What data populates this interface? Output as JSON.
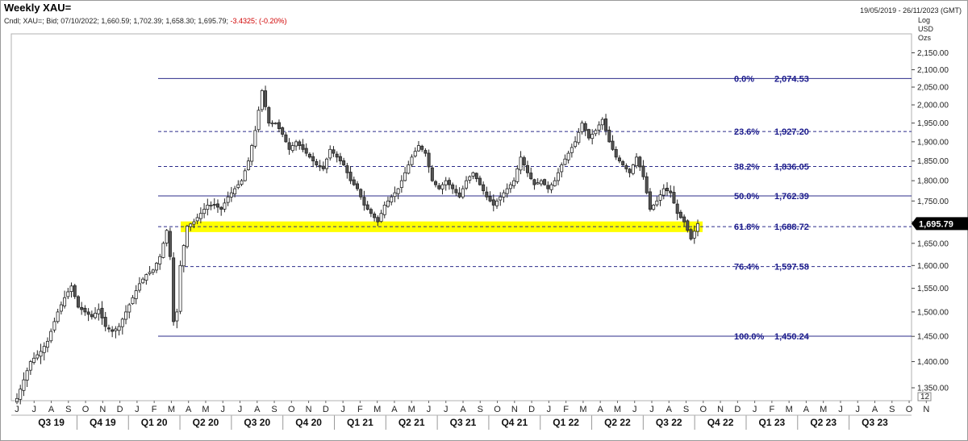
{
  "header": {
    "title": "Weekly XAU=",
    "date_range": "19/05/2019 - 26/11/2023 (GMT)",
    "legend_main": "Cndl; XAU=; Bid; 07/10/2022; 1,660.59; 1,702.39; 1,658.30; 1,695.79;",
    "legend_change": "-3.4325; (-0.20%)",
    "units": [
      "Log",
      "USD",
      "Ozs"
    ]
  },
  "colors": {
    "fib_line": "#2b2b8a",
    "fib_text": "#1a1a8c",
    "highlight": "#ffff00",
    "last_price_bg": "#000000",
    "candle_up": "#ffffff",
    "candle_down": "#555555"
  },
  "chart_data": {
    "type": "candlestick",
    "y_scale": "log",
    "ylim": [
      1305,
      2200
    ],
    "y_ticks": [
      "1,350.00",
      "1,400.00",
      "1,450.00",
      "1,500.00",
      "1,550.00",
      "1,600.00",
      "1,650.00",
      "1,700.00",
      "1,750.00",
      "1,800.00",
      "1,850.00",
      "1,900.00",
      "1,950.00",
      "2,000.00",
      "2,050.00",
      "2,100.00",
      "2,150.00"
    ],
    "y_tick_values": [
      1350,
      1400,
      1450,
      1500,
      1550,
      1600,
      1650,
      1700,
      1750,
      1800,
      1850,
      1900,
      1950,
      2000,
      2050,
      2100,
      2150
    ],
    "month_labels": [
      "J",
      "J",
      "A",
      "S",
      "O",
      "N",
      "D",
      "J",
      "F",
      "M",
      "A",
      "M",
      "J",
      "J",
      "A",
      "S",
      "O",
      "N",
      "D",
      "J",
      "F",
      "M",
      "A",
      "M",
      "J",
      "J",
      "A",
      "S",
      "O",
      "N",
      "D",
      "J",
      "F",
      "M",
      "A",
      "M",
      "J",
      "J",
      "A",
      "S",
      "O",
      "N",
      "D",
      "J",
      "F",
      "M",
      "A",
      "M",
      "J",
      "J",
      "A",
      "S",
      "O",
      "N"
    ],
    "quarter_labels": [
      "Q3 19",
      "Q4 19",
      "Q1 20",
      "Q2 20",
      "Q3 20",
      "Q4 20",
      "Q1 21",
      "Q2 21",
      "Q3 21",
      "Q4 21",
      "Q1 22",
      "Q2 22",
      "Q3 22",
      "Q4 22",
      "Q1 23",
      "Q2 23",
      "Q3 23"
    ],
    "last_price": {
      "value": 1695.79,
      "label": "1,695.79"
    },
    "extra_axis_label": "12",
    "fib_levels": [
      {
        "pct": "0.0%",
        "label": "2,074.53",
        "value": 2074.53,
        "style": "solid"
      },
      {
        "pct": "23.6%",
        "label": "1,927.20",
        "value": 1927.2,
        "style": "dashed"
      },
      {
        "pct": "38.2%",
        "label": "1,836.05",
        "value": 1836.05,
        "style": "dashed"
      },
      {
        "pct": "50.0%",
        "label": "1,762.39",
        "value": 1762.39,
        "style": "solid"
      },
      {
        "pct": "61.8%",
        "label": "1,688.72",
        "value": 1688.72,
        "style": "dashed"
      },
      {
        "pct": "76.4%",
        "label": "1,597.58",
        "value": 1597.58,
        "style": "dashed"
      },
      {
        "pct": "100.0%",
        "label": "1,450.24",
        "value": 1450.24,
        "style": "solid"
      }
    ],
    "highlight_band": {
      "low": 1676,
      "high": 1701
    },
    "close_path": [
      [
        0,
        1330
      ],
      [
        4,
        1400
      ],
      [
        7,
        1420
      ],
      [
        9,
        1440
      ],
      [
        12,
        1500
      ],
      [
        14,
        1530
      ],
      [
        16,
        1555
      ],
      [
        18,
        1510
      ],
      [
        20,
        1500
      ],
      [
        22,
        1490
      ],
      [
        24,
        1505
      ],
      [
        26,
        1470
      ],
      [
        28,
        1460
      ],
      [
        30,
        1470
      ],
      [
        32,
        1500
      ],
      [
        34,
        1530
      ],
      [
        36,
        1560
      ],
      [
        38,
        1580
      ],
      [
        40,
        1590
      ],
      [
        42,
        1620
      ],
      [
        44,
        1680
      ],
      [
        45,
        1620
      ],
      [
        46,
        1480
      ],
      [
        47,
        1500
      ],
      [
        48,
        1600
      ],
      [
        50,
        1690
      ],
      [
        52,
        1700
      ],
      [
        54,
        1720
      ],
      [
        56,
        1740
      ],
      [
        58,
        1740
      ],
      [
        60,
        1730
      ],
      [
        62,
        1760
      ],
      [
        64,
        1780
      ],
      [
        66,
        1800
      ],
      [
        68,
        1850
      ],
      [
        70,
        1930
      ],
      [
        72,
        2040
      ],
      [
        74,
        1950
      ],
      [
        76,
        1950
      ],
      [
        78,
        1920
      ],
      [
        80,
        1880
      ],
      [
        82,
        1900
      ],
      [
        84,
        1880
      ],
      [
        86,
        1860
      ],
      [
        88,
        1840
      ],
      [
        90,
        1830
      ],
      [
        92,
        1880
      ],
      [
        94,
        1860
      ],
      [
        96,
        1840
      ],
      [
        98,
        1800
      ],
      [
        100,
        1780
      ],
      [
        102,
        1740
      ],
      [
        104,
        1720
      ],
      [
        106,
        1700
      ],
      [
        108,
        1740
      ],
      [
        110,
        1760
      ],
      [
        112,
        1780
      ],
      [
        114,
        1820
      ],
      [
        116,
        1860
      ],
      [
        118,
        1890
      ],
      [
        120,
        1870
      ],
      [
        122,
        1800
      ],
      [
        124,
        1780
      ],
      [
        126,
        1800
      ],
      [
        128,
        1780
      ],
      [
        130,
        1760
      ],
      [
        132,
        1800
      ],
      [
        134,
        1820
      ],
      [
        136,
        1790
      ],
      [
        138,
        1760
      ],
      [
        140,
        1740
      ],
      [
        142,
        1760
      ],
      [
        144,
        1780
      ],
      [
        146,
        1800
      ],
      [
        148,
        1860
      ],
      [
        150,
        1820
      ],
      [
        152,
        1790
      ],
      [
        154,
        1800
      ],
      [
        156,
        1780
      ],
      [
        158,
        1800
      ],
      [
        160,
        1840
      ],
      [
        162,
        1870
      ],
      [
        164,
        1900
      ],
      [
        166,
        1950
      ],
      [
        168,
        1910
      ],
      [
        170,
        1930
      ],
      [
        172,
        1960
      ],
      [
        174,
        1900
      ],
      [
        176,
        1860
      ],
      [
        178,
        1840
      ],
      [
        180,
        1820
      ],
      [
        182,
        1860
      ],
      [
        184,
        1810
      ],
      [
        186,
        1730
      ],
      [
        188,
        1750
      ],
      [
        190,
        1780
      ],
      [
        192,
        1770
      ],
      [
        194,
        1720
      ],
      [
        196,
        1700
      ],
      [
        198,
        1660
      ],
      [
        200,
        1695.79
      ]
    ]
  }
}
